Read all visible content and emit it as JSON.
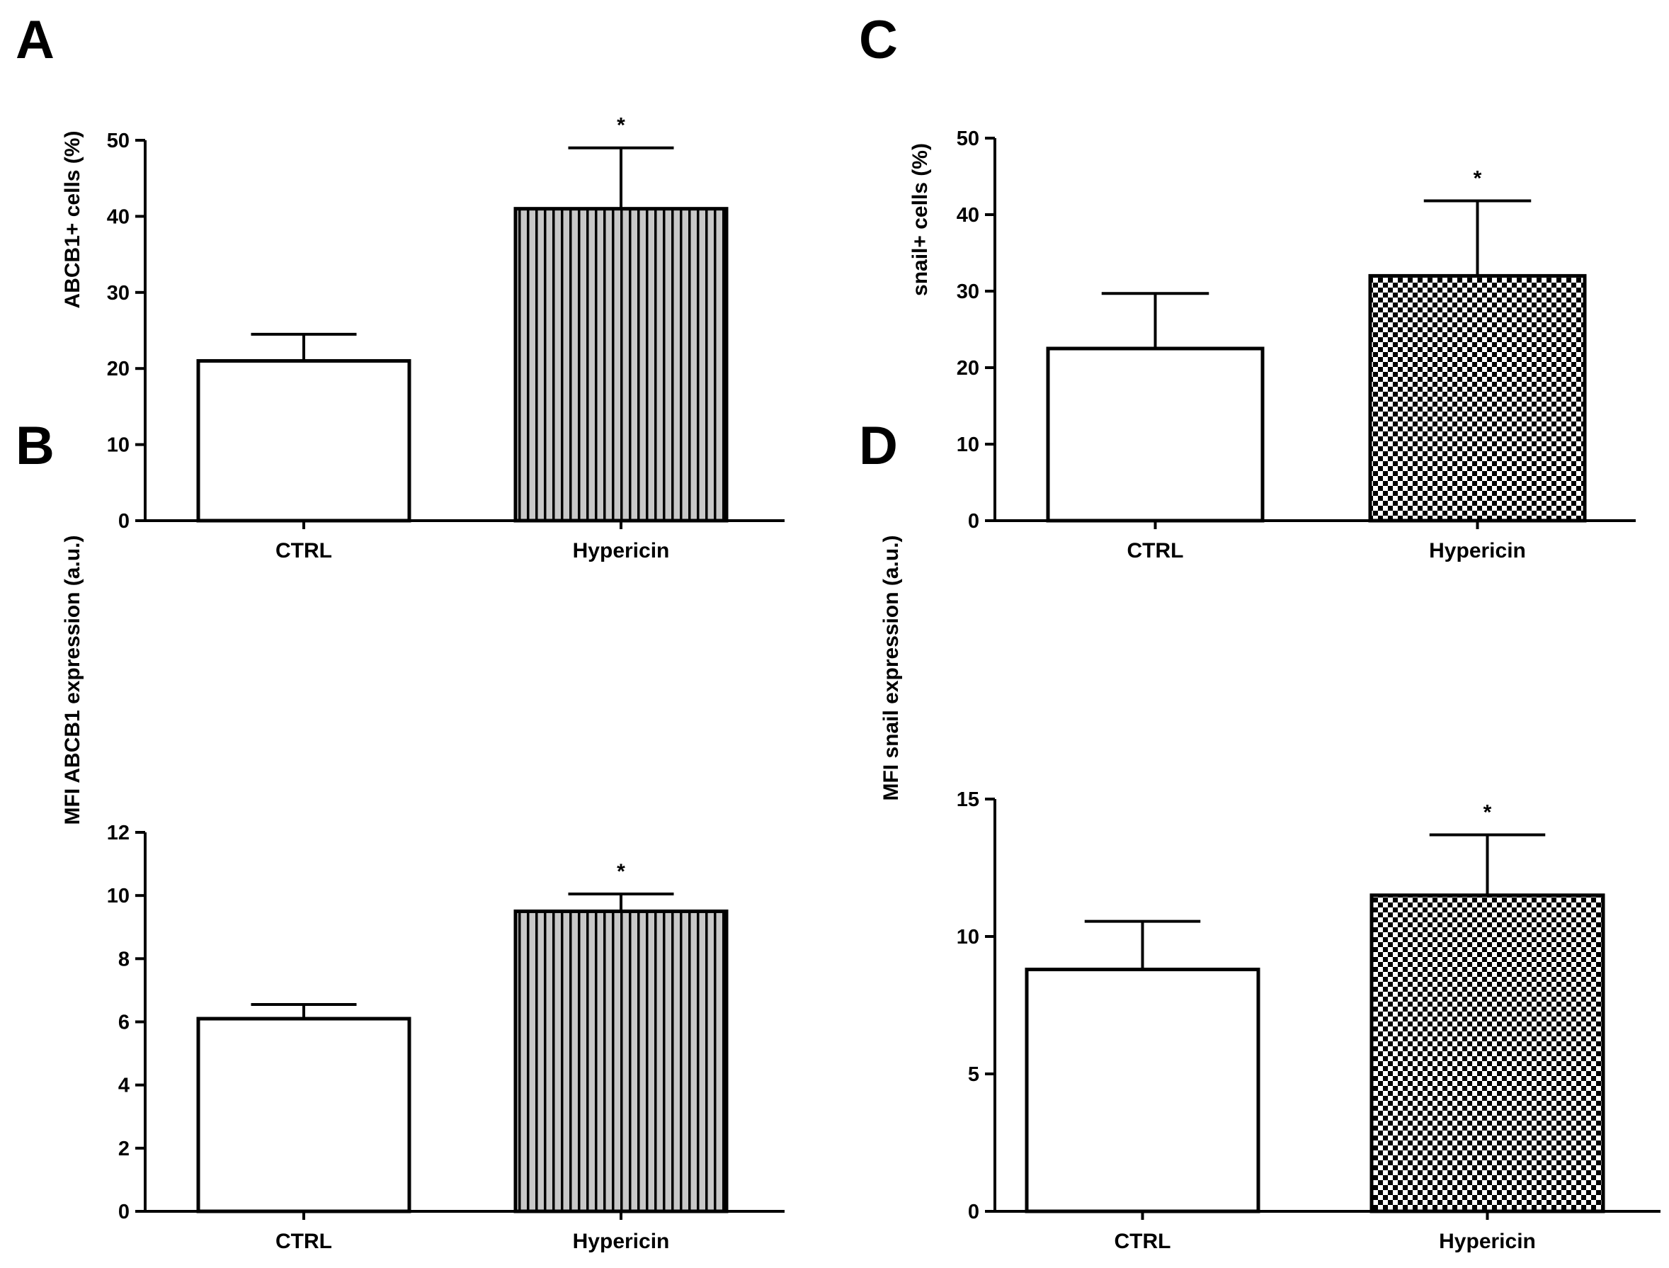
{
  "chart_data": [
    {
      "panel": "A",
      "type": "bar",
      "categories": [
        "CTRL",
        "Hypericin"
      ],
      "values": [
        21,
        41
      ],
      "errors": [
        3.5,
        8
      ],
      "significance": [
        "",
        "*"
      ],
      "fills": [
        "solid-white",
        "vertical-stripes"
      ],
      "ylabel": "ABCB1+ cells (%)",
      "ylim": [
        0,
        50
      ],
      "yticks": [
        0,
        10,
        20,
        30,
        40,
        50
      ],
      "grid": false
    },
    {
      "panel": "B",
      "type": "bar",
      "categories": [
        "CTRL",
        "Hypericin"
      ],
      "values": [
        6.1,
        9.5
      ],
      "errors": [
        0.45,
        0.55
      ],
      "significance": [
        "",
        "*"
      ],
      "fills": [
        "solid-white",
        "vertical-stripes"
      ],
      "ylabel": "MFI ABCB1 expression (a.u.)",
      "ylim": [
        0,
        12
      ],
      "yticks": [
        0,
        2,
        4,
        6,
        8,
        10,
        12
      ],
      "grid": false
    },
    {
      "panel": "C",
      "type": "bar",
      "categories": [
        "CTRL",
        "Hypericin"
      ],
      "values": [
        22.5,
        32
      ],
      "errors": [
        7.2,
        9.8
      ],
      "significance": [
        "",
        "*"
      ],
      "fills": [
        "solid-white",
        "checkerboard"
      ],
      "ylabel": "snail+ cells (%)",
      "ylim": [
        0,
        50
      ],
      "yticks": [
        0,
        10,
        20,
        30,
        40,
        50
      ],
      "grid": false
    },
    {
      "panel": "D",
      "type": "bar",
      "categories": [
        "CTRL",
        "Hypericin"
      ],
      "values": [
        8.8,
        11.5
      ],
      "errors": [
        1.75,
        2.2
      ],
      "significance": [
        "",
        "*"
      ],
      "fills": [
        "solid-white",
        "checkerboard"
      ],
      "ylabel": "MFI snail expression (a.u.)",
      "ylim": [
        0,
        15
      ],
      "yticks": [
        0,
        5,
        10,
        15
      ],
      "grid": false
    }
  ],
  "colors": {
    "ink": "#000000",
    "bar_fill": "#ffffff",
    "pattern_fill": "#c8c8c8"
  }
}
